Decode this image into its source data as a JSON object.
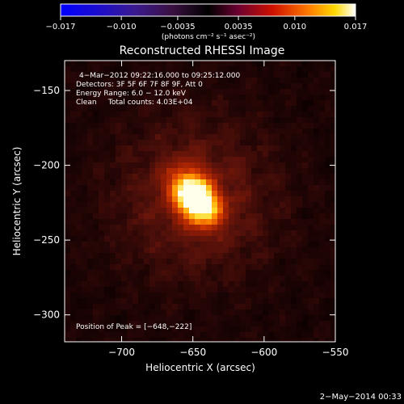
{
  "chart_data": {
    "type": "heatmap",
    "title": "Reconstructed RHESSI Image",
    "xlabel": "Heliocentric X (arcsec)",
    "ylabel": "Heliocentric Y (arcsec)",
    "xlim": [
      -740,
      -550
    ],
    "ylim": [
      -318,
      -130
    ],
    "x_ticks": [
      {
        "value": -700,
        "label": "−700"
      },
      {
        "value": -650,
        "label": "−650"
      },
      {
        "value": -600,
        "label": "−600"
      },
      {
        "value": -550,
        "label": "−550"
      }
    ],
    "y_ticks": [
      {
        "value": -150,
        "label": "−150"
      },
      {
        "value": -200,
        "label": "−200"
      },
      {
        "value": -250,
        "label": "−250"
      },
      {
        "value": -300,
        "label": "−300"
      }
    ],
    "colorbar": {
      "range": [
        -0.017,
        0.017
      ],
      "ticks": [
        {
          "value": -0.017,
          "label": "−0.017"
        },
        {
          "value": -0.01,
          "label": "−0.010"
        },
        {
          "value": -0.0035,
          "label": "−0.0035"
        },
        {
          "value": 0.0035,
          "label": "0.0035"
        },
        {
          "value": 0.01,
          "label": "0.010"
        },
        {
          "value": 0.017,
          "label": "0.017"
        }
      ],
      "units_label": "(photons cm⁻² s⁻¹ asec⁻²)"
    },
    "peak": {
      "x": -648,
      "y": -222
    },
    "annotations": [
      "4−Mar−2012 09:22:16.000 to 09:25:12.000",
      "Detectors: 3F 5F 6F 7F 8F 9F, Att 0",
      "Energy Range: 6.0 − 12.0 keV",
      "Clean     Total counts: 4.03E+04"
    ],
    "peak_label": "Position of Peak = [−648,−222]",
    "timestamp": "2−May−2014 00:33"
  }
}
